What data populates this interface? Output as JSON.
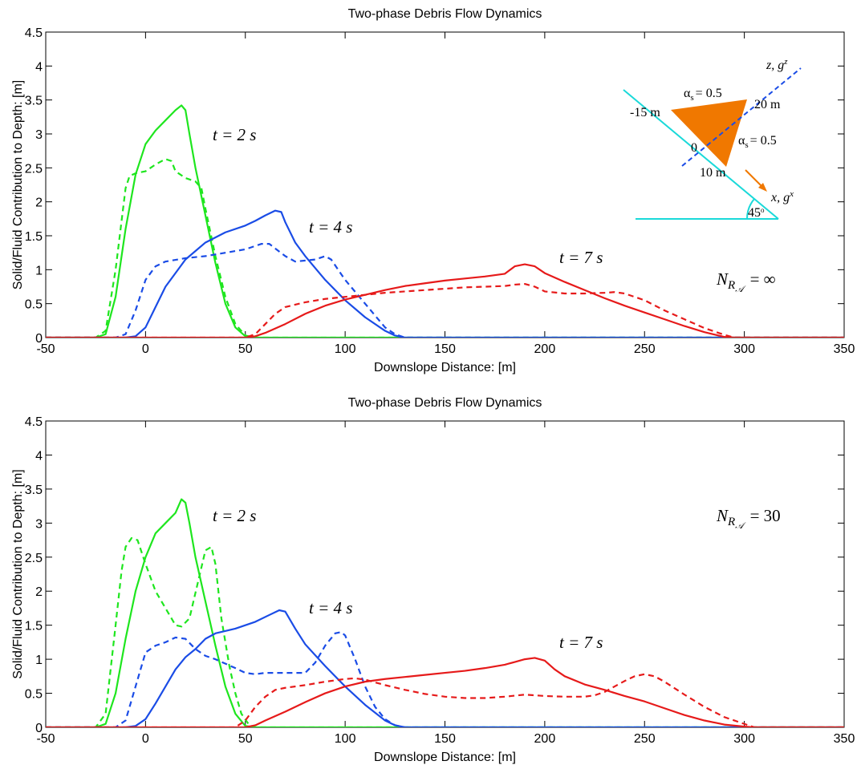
{
  "chart_data": [
    {
      "type": "line",
      "title": "Two-phase Debris Flow Dynamics",
      "xlabel": "Downslope Distance: [m]",
      "ylabel": "Solid/Fluid Contribution to Depth: [m]",
      "xlim": [
        -50,
        350
      ],
      "ylim": [
        0,
        4.5
      ],
      "xticks": [
        -50,
        0,
        50,
        100,
        150,
        200,
        250,
        300,
        350
      ],
      "yticks": [
        0,
        0.5,
        1,
        1.5,
        2,
        2.5,
        3,
        3.5,
        4,
        4.5
      ],
      "grid": false,
      "series": [
        {
          "color": "#1ee61e",
          "dashed": false,
          "x": [
            -50,
            -25,
            -20,
            -15,
            -10,
            -5,
            0,
            5,
            10,
            15,
            18,
            20,
            22,
            25,
            30,
            35,
            40,
            45,
            50,
            55,
            350
          ],
          "values": [
            0,
            0,
            0.05,
            0.6,
            1.6,
            2.4,
            2.85,
            3.05,
            3.2,
            3.35,
            3.42,
            3.35,
            3.0,
            2.5,
            1.8,
            1.1,
            0.5,
            0.15,
            0.02,
            0,
            0
          ]
        },
        {
          "color": "#1ee61e",
          "dashed": true,
          "x": [
            -50,
            -25,
            -20,
            -15,
            -10,
            -8,
            -5,
            0,
            5,
            10,
            13,
            15,
            20,
            25,
            28,
            30,
            35,
            40,
            45,
            50,
            55,
            350
          ],
          "values": [
            0,
            0,
            0.1,
            1.0,
            2.2,
            2.38,
            2.42,
            2.45,
            2.55,
            2.63,
            2.6,
            2.45,
            2.35,
            2.3,
            2.2,
            1.9,
            1.2,
            0.6,
            0.2,
            0.03,
            0,
            0
          ]
        },
        {
          "color": "#1a4ce6",
          "dashed": false,
          "x": [
            -50,
            -10,
            -5,
            0,
            5,
            10,
            20,
            30,
            40,
            50,
            55,
            60,
            65,
            68,
            70,
            75,
            80,
            90,
            100,
            110,
            120,
            125,
            130,
            350
          ],
          "values": [
            0,
            0,
            0.02,
            0.15,
            0.45,
            0.75,
            1.15,
            1.4,
            1.55,
            1.65,
            1.72,
            1.8,
            1.87,
            1.85,
            1.7,
            1.4,
            1.2,
            0.85,
            0.55,
            0.3,
            0.1,
            0.03,
            0,
            0
          ]
        },
        {
          "color": "#1a4ce6",
          "dashed": true,
          "x": [
            -50,
            -15,
            -10,
            -5,
            0,
            5,
            10,
            20,
            30,
            40,
            50,
            58,
            62,
            70,
            75,
            85,
            90,
            93,
            100,
            110,
            120,
            125,
            130,
            350
          ],
          "values": [
            0,
            0,
            0.05,
            0.4,
            0.85,
            1.05,
            1.12,
            1.17,
            1.2,
            1.25,
            1.3,
            1.38,
            1.38,
            1.2,
            1.12,
            1.15,
            1.2,
            1.15,
            0.85,
            0.5,
            0.15,
            0.05,
            0,
            0
          ]
        },
        {
          "color": "#e61a1a",
          "dashed": false,
          "x": [
            -50,
            50,
            55,
            60,
            70,
            80,
            90,
            100,
            110,
            120,
            130,
            140,
            150,
            160,
            170,
            180,
            185,
            190,
            195,
            200,
            210,
            220,
            230,
            240,
            250,
            260,
            270,
            280,
            290,
            295,
            350
          ],
          "values": [
            0,
            0,
            0.02,
            0.07,
            0.2,
            0.35,
            0.47,
            0.56,
            0.63,
            0.7,
            0.76,
            0.8,
            0.84,
            0.87,
            0.9,
            0.94,
            1.05,
            1.08,
            1.05,
            0.95,
            0.82,
            0.7,
            0.58,
            0.47,
            0.37,
            0.27,
            0.17,
            0.08,
            0.01,
            0,
            0
          ]
        },
        {
          "color": "#e61a1a",
          "dashed": true,
          "x": [
            -50,
            50,
            55,
            60,
            65,
            70,
            80,
            90,
            100,
            110,
            120,
            130,
            140,
            150,
            160,
            170,
            180,
            185,
            190,
            195,
            200,
            210,
            220,
            230,
            235,
            240,
            250,
            260,
            270,
            280,
            290,
            295,
            350
          ],
          "values": [
            0,
            0,
            0.05,
            0.2,
            0.35,
            0.45,
            0.52,
            0.57,
            0.6,
            0.63,
            0.66,
            0.68,
            0.7,
            0.72,
            0.74,
            0.75,
            0.76,
            0.78,
            0.79,
            0.75,
            0.68,
            0.65,
            0.65,
            0.66,
            0.67,
            0.65,
            0.55,
            0.4,
            0.27,
            0.14,
            0.04,
            0,
            0
          ]
        }
      ],
      "annotations": [
        {
          "text": "t = 2 s"
        },
        {
          "text": "t = 4 s"
        },
        {
          "text": "t = 7 s"
        },
        {
          "base": "N",
          "sub": "R",
          "subsub": "𝒜",
          "rest": "= ∞"
        }
      ],
      "inset": [
        {
          "symbol": "α",
          "sub": "s",
          "rest": "= 0.5"
        },
        {
          "text": "-15 m"
        },
        {
          "text": "20 m"
        },
        {
          "text": "0"
        },
        {
          "symbol": "α",
          "sub": "s",
          "rest": "= 0.5"
        },
        {
          "text": "10 m"
        },
        {
          "base": "x, g",
          "sup": "x"
        },
        {
          "base": "z, g",
          "sup": "z"
        },
        {
          "base": "45",
          "sup": "o"
        }
      ]
    },
    {
      "type": "line",
      "title": "Two-phase Debris Flow Dynamics",
      "xlabel": "Downslope Distance: [m]",
      "ylabel": "Solid/Fluid Contribution to Depth: [m]",
      "xlim": [
        -50,
        350
      ],
      "ylim": [
        0,
        4.5
      ],
      "xticks": [
        -50,
        0,
        50,
        100,
        150,
        200,
        250,
        300,
        350
      ],
      "yticks": [
        0,
        0.5,
        1,
        1.5,
        2,
        2.5,
        3,
        3.5,
        4,
        4.5
      ],
      "grid": false,
      "series": [
        {
          "color": "#1ee61e",
          "dashed": false,
          "x": [
            -50,
            -25,
            -20,
            -15,
            -10,
            -5,
            0,
            5,
            10,
            15,
            18,
            20,
            22,
            25,
            30,
            35,
            40,
            45,
            50,
            55,
            350
          ],
          "values": [
            0,
            0,
            0.05,
            0.5,
            1.3,
            2.0,
            2.5,
            2.85,
            3.0,
            3.15,
            3.35,
            3.3,
            3.0,
            2.5,
            1.85,
            1.2,
            0.6,
            0.2,
            0.02,
            0,
            0
          ]
        },
        {
          "color": "#1ee61e",
          "dashed": true,
          "x": [
            -50,
            -25,
            -20,
            -15,
            -12,
            -10,
            -7,
            -4,
            0,
            5,
            10,
            15,
            18,
            22,
            26,
            30,
            33,
            35,
            38,
            42,
            45,
            48,
            52,
            55,
            350
          ],
          "values": [
            0,
            0,
            0.2,
            1.5,
            2.3,
            2.65,
            2.78,
            2.75,
            2.4,
            2.0,
            1.75,
            1.5,
            1.48,
            1.6,
            2.1,
            2.6,
            2.65,
            2.4,
            1.6,
            0.9,
            0.5,
            0.2,
            0.03,
            0,
            0
          ]
        },
        {
          "color": "#1a4ce6",
          "dashed": false,
          "x": [
            -50,
            -10,
            -5,
            0,
            5,
            10,
            15,
            20,
            25,
            30,
            35,
            45,
            55,
            62,
            67,
            70,
            75,
            80,
            90,
            100,
            110,
            120,
            125,
            130,
            350
          ],
          "values": [
            0,
            0,
            0.02,
            0.12,
            0.35,
            0.6,
            0.85,
            1.03,
            1.15,
            1.3,
            1.38,
            1.45,
            1.55,
            1.65,
            1.72,
            1.7,
            1.45,
            1.22,
            0.9,
            0.6,
            0.33,
            0.1,
            0.03,
            0,
            0
          ]
        },
        {
          "color": "#1a4ce6",
          "dashed": true,
          "x": [
            -50,
            -15,
            -10,
            -5,
            0,
            5,
            10,
            15,
            20,
            25,
            30,
            35,
            45,
            50,
            55,
            60,
            65,
            70,
            75,
            80,
            85,
            90,
            95,
            98,
            100,
            105,
            110,
            115,
            120,
            125,
            130,
            350
          ],
          "values": [
            0,
            0,
            0.1,
            0.6,
            1.1,
            1.2,
            1.25,
            1.32,
            1.3,
            1.15,
            1.05,
            1.0,
            0.87,
            0.8,
            0.78,
            0.8,
            0.8,
            0.8,
            0.8,
            0.8,
            0.95,
            1.2,
            1.38,
            1.4,
            1.35,
            1.0,
            0.6,
            0.3,
            0.12,
            0.03,
            0,
            0
          ]
        },
        {
          "color": "#e61a1a",
          "dashed": false,
          "x": [
            -50,
            50,
            55,
            60,
            70,
            80,
            90,
            100,
            110,
            120,
            130,
            140,
            150,
            160,
            170,
            180,
            185,
            190,
            195,
            200,
            205,
            210,
            220,
            230,
            240,
            250,
            260,
            270,
            280,
            290,
            300,
            305,
            350
          ],
          "values": [
            0,
            0,
            0.03,
            0.1,
            0.23,
            0.37,
            0.5,
            0.6,
            0.67,
            0.71,
            0.74,
            0.77,
            0.8,
            0.83,
            0.87,
            0.92,
            0.96,
            1.0,
            1.02,
            0.98,
            0.85,
            0.75,
            0.63,
            0.55,
            0.46,
            0.38,
            0.28,
            0.18,
            0.1,
            0.04,
            0.01,
            0,
            0
          ]
        },
        {
          "color": "#e61a1a",
          "dashed": true,
          "x": [
            -50,
            45,
            50,
            55,
            60,
            65,
            70,
            80,
            90,
            100,
            105,
            110,
            120,
            130,
            140,
            150,
            160,
            170,
            180,
            190,
            200,
            210,
            220,
            225,
            230,
            240,
            245,
            250,
            255,
            260,
            270,
            280,
            290,
            300,
            305,
            350
          ],
          "values": [
            0,
            0,
            0.1,
            0.3,
            0.45,
            0.55,
            0.58,
            0.62,
            0.67,
            0.71,
            0.72,
            0.7,
            0.62,
            0.55,
            0.49,
            0.45,
            0.43,
            0.43,
            0.45,
            0.48,
            0.46,
            0.45,
            0.45,
            0.47,
            0.52,
            0.68,
            0.75,
            0.78,
            0.75,
            0.67,
            0.48,
            0.3,
            0.15,
            0.05,
            0,
            0
          ]
        }
      ],
      "annotations": [
        {
          "text": "t = 2 s"
        },
        {
          "text": "t = 4 s"
        },
        {
          "text": "t = 7 s"
        },
        {
          "base": "N",
          "sub": "R",
          "subsub": "𝒜",
          "rest": "= 30"
        }
      ]
    }
  ]
}
